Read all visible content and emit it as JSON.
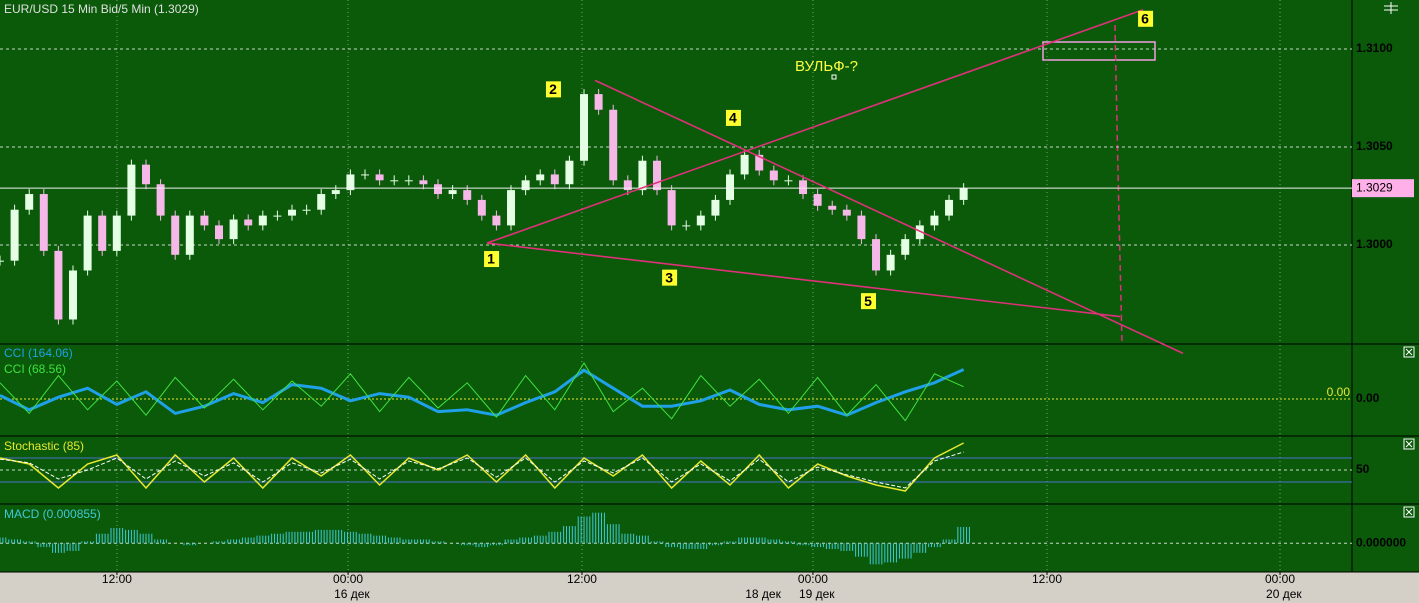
{
  "chart_data": [
    {
      "type": "candlestick",
      "title": "EUR/USD 15 Min Bid/5 Min (1.3029)",
      "x": [
        0,
        1,
        2,
        3,
        4,
        5,
        6,
        7,
        8,
        9,
        10,
        11,
        12,
        13,
        14,
        15,
        16,
        17,
        18,
        19,
        20,
        21,
        22,
        23,
        24,
        25,
        26,
        27,
        28,
        29,
        30,
        31,
        32,
        33,
        34,
        35,
        36,
        37,
        38,
        39,
        40,
        41,
        42,
        43,
        44,
        45,
        46,
        47,
        48,
        49,
        50,
        51,
        52,
        53,
        54,
        55,
        56,
        57,
        58,
        59,
        60,
        61,
        62,
        63,
        64,
        65,
        66
      ],
      "values": [
        1.2992,
        1.3018,
        1.3026,
        1.2997,
        1.2962,
        1.2987,
        1.3015,
        1.2997,
        1.3015,
        1.3041,
        1.3031,
        1.3015,
        1.2995,
        1.3015,
        1.301,
        1.3003,
        1.3013,
        1.301,
        1.3015,
        1.3015,
        1.3018,
        1.3018,
        1.3026,
        1.3028,
        1.3036,
        1.3036,
        1.3033,
        1.3033,
        1.3033,
        1.3031,
        1.3026,
        1.3028,
        1.3023,
        1.3015,
        1.301,
        1.3028,
        1.3033,
        1.3036,
        1.3031,
        1.3043,
        1.3077,
        1.3069,
        1.3033,
        1.3028,
        1.3043,
        1.3028,
        1.301,
        1.301,
        1.3015,
        1.3023,
        1.3036,
        1.3046,
        1.3038,
        1.3033,
        1.3033,
        1.3026,
        1.302,
        1.3018,
        1.3015,
        1.3003,
        1.2987,
        1.2995,
        1.3003,
        1.301,
        1.3015,
        1.3023,
        1.3029
      ],
      "up_color": "#e4ffe4",
      "down_color": "#f5b8e8",
      "xlim": [
        0,
        92.6
      ],
      "ylim": [
        1.295,
        1.3125
      ],
      "yticks": [
        {
          "value": 1.31,
          "label": "1.3100"
        },
        {
          "value": 1.305,
          "label": "1.3050"
        },
        {
          "value": 1.3,
          "label": "1.3000"
        }
      ],
      "current": {
        "value": 1.3029,
        "label": "1.3029"
      },
      "xticks": [
        {
          "value": 8.01,
          "label": "12:00"
        },
        {
          "value": 23.84,
          "label": "00:00"
        },
        {
          "value": 39.86,
          "label": "12:00"
        },
        {
          "value": 55.68,
          "label": "00:00"
        },
        {
          "value": 71.71,
          "label": "12:00"
        },
        {
          "value": 87.67,
          "label": "00:00"
        }
      ],
      "day_labels": [
        {
          "value": 23.84,
          "label": "16 дек"
        },
        {
          "value": 52.0,
          "label": "18 дек"
        },
        {
          "value": 55.68,
          "label": "19 дек"
        },
        {
          "value": 87.67,
          "label": "20 дек"
        }
      ],
      "annotations": [
        {
          "label": "1",
          "x": 33.36,
          "y": 1.3001
        },
        {
          "label": "2",
          "x": 40.75,
          "y": 1.3084
        },
        {
          "label": "3",
          "x": 46.58,
          "y": 1.2991
        },
        {
          "label": "4",
          "x": 51.16,
          "y": 1.3048
        },
        {
          "label": "5",
          "x": 59.93,
          "y": 1.2978
        },
        {
          "label": "6",
          "x": 78.29,
          "y": 1.312
        }
      ],
      "note": "ВУЛЬФ-?"
    },
    {
      "type": "line",
      "x": [
        0,
        2,
        4,
        6,
        8,
        10,
        12,
        14,
        16,
        18,
        20,
        22,
        24,
        26,
        28,
        30,
        32,
        34,
        36,
        38,
        40,
        42,
        44,
        46,
        48,
        50,
        52,
        54,
        56,
        58,
        60,
        62,
        64,
        66
      ],
      "series": [
        {
          "name": "CCI (164.06)",
          "color": "#1fa0e8",
          "width": 3,
          "values": [
            20,
            -60,
            10,
            60,
            -30,
            40,
            -80,
            -40,
            30,
            -20,
            80,
            60,
            -10,
            30,
            10,
            -70,
            -60,
            -90,
            -20,
            40,
            160,
            60,
            -40,
            -40,
            -10,
            50,
            -30,
            -60,
            -40,
            -90,
            -20,
            40,
            90,
            164.06
          ]
        },
        {
          "name": "CCI (68.56)",
          "color": "#40e040",
          "width": 1,
          "values": [
            90,
            -80,
            130,
            -60,
            100,
            -90,
            120,
            -50,
            110,
            -60,
            100,
            -40,
            140,
            -70,
            120,
            -50,
            90,
            -100,
            130,
            -60,
            200,
            -70,
            60,
            -110,
            130,
            -40,
            110,
            -80,
            120,
            -90,
            80,
            -120,
            140,
            68.56
          ]
        }
      ],
      "xlim": [
        0,
        92.6
      ],
      "ylim": [
        -200,
        300
      ],
      "yticks": [
        {
          "value": 0,
          "label": "0.00"
        }
      ]
    },
    {
      "type": "line",
      "title": "Stochastic (85)",
      "x": [
        0,
        2,
        4,
        6,
        8,
        10,
        12,
        14,
        16,
        18,
        20,
        22,
        24,
        26,
        28,
        30,
        32,
        34,
        36,
        38,
        40,
        42,
        44,
        46,
        48,
        50,
        52,
        54,
        56,
        58,
        60,
        62,
        64,
        66
      ],
      "series": [
        {
          "color": "#e8e830",
          "width": 1.5,
          "values": [
            70,
            60,
            20,
            60,
            75,
            20,
            75,
            30,
            70,
            20,
            70,
            40,
            75,
            25,
            70,
            50,
            75,
            30,
            75,
            20,
            70,
            40,
            75,
            20,
            65,
            25,
            75,
            20,
            60,
            40,
            25,
            15,
            70,
            95
          ]
        },
        {
          "color": "#ffffff",
          "width": 1,
          "dash": true,
          "values": [
            68,
            62,
            35,
            50,
            70,
            35,
            65,
            40,
            62,
            30,
            62,
            45,
            68,
            35,
            65,
            52,
            70,
            38,
            70,
            30,
            65,
            45,
            70,
            30,
            60,
            32,
            68,
            30,
            55,
            42,
            30,
            20,
            65,
            80
          ]
        }
      ],
      "levels": [
        70,
        30
      ],
      "level_color": "#4a6fd0",
      "xlim": [
        0,
        92.6
      ],
      "ylim": [
        -5,
        105
      ],
      "yticks": [
        50
      ]
    },
    {
      "type": "bar",
      "title": "MACD (0.000855)",
      "color": "#40c8d8",
      "x": [
        0,
        1,
        2,
        3,
        4,
        5,
        6,
        7,
        8,
        9,
        10,
        11,
        12,
        13,
        14,
        15,
        16,
        17,
        18,
        19,
        20,
        21,
        22,
        23,
        24,
        25,
        26,
        27,
        28,
        29,
        30,
        31,
        32,
        33,
        34,
        35,
        36,
        37,
        38,
        39,
        40,
        41,
        42,
        43,
        44,
        45,
        46,
        47,
        48,
        49,
        50,
        51,
        52,
        53,
        54,
        55,
        56,
        57,
        58,
        59,
        60,
        61,
        62,
        63,
        64,
        65,
        66
      ],
      "values": [
        0.0003,
        0.0002,
        0.0001,
        -0.0002,
        -0.0005,
        -0.0004,
        0.0001,
        0.0005,
        0.0008,
        0.0007,
        0.0005,
        0.0002,
        0,
        -0.0001,
        0,
        0.0001,
        0.0002,
        0.0003,
        0.0004,
        0.0005,
        0.0006,
        0.0006,
        0.0007,
        0.0007,
        0.0006,
        0.0005,
        0.0004,
        0.0003,
        0.0002,
        0.0002,
        0.0001,
        0,
        -0.0001,
        -0.0002,
        -0.0001,
        0.0002,
        0.0003,
        0.0004,
        0.0006,
        0.0009,
        0.0014,
        0.0016,
        0.001,
        0.0005,
        0.0004,
        0.0001,
        -0.0002,
        -0.0003,
        -0.0003,
        -0.0001,
        0.0001,
        0.0003,
        0.0003,
        0.0002,
        0.0001,
        -0.0001,
        -0.0002,
        -0.0003,
        -0.0004,
        -0.0007,
        -0.0011,
        -0.001,
        -0.0008,
        -0.0005,
        -0.0002,
        0.0002,
        0.000855
      ],
      "xlim": [
        0,
        92.6
      ],
      "ylim": [
        -0.0015,
        0.002
      ],
      "yticks": [
        {
          "value": 0,
          "label": "0.000000"
        }
      ]
    }
  ]
}
